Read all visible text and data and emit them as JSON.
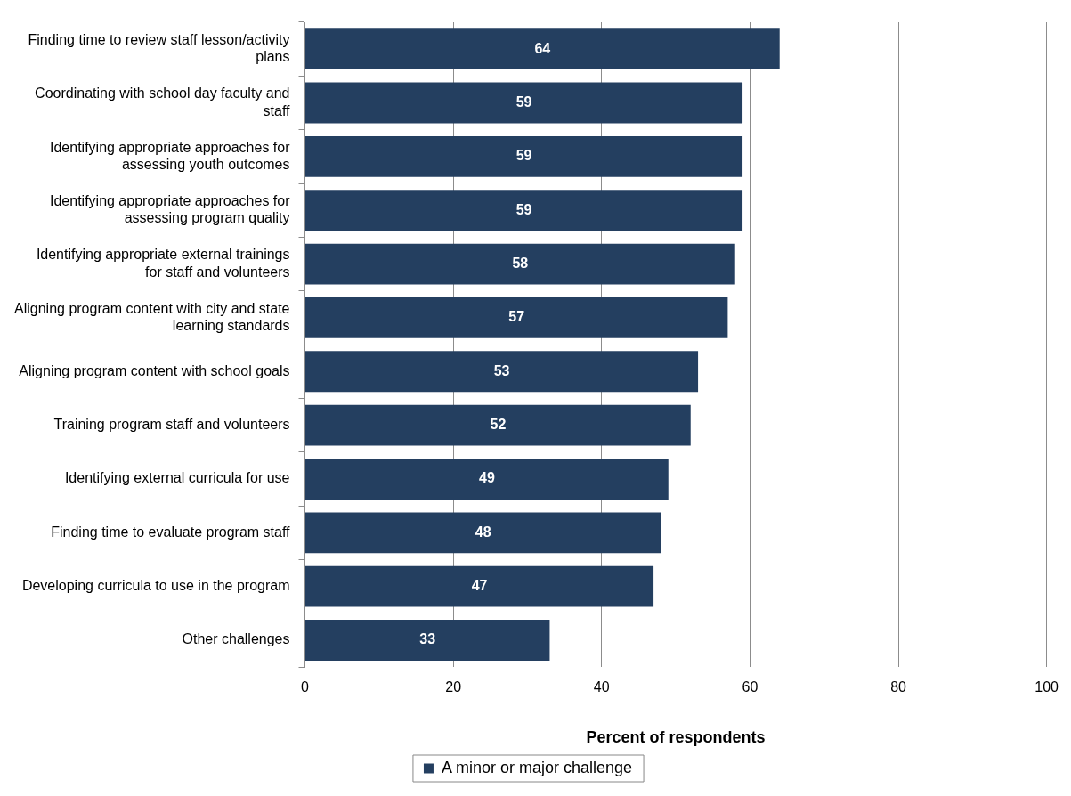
{
  "chart_data": {
    "type": "bar",
    "orientation": "horizontal",
    "xlabel": "Percent of respondents",
    "categories": [
      "Finding time to review staff lesson/activity plans",
      "Coordinating with school day faculty and staff",
      "Identifying appropriate approaches for assessing youth outcomes",
      "Identifying appropriate approaches for assessing program quality",
      "Identifying appropriate external trainings for staff and volunteers",
      "Aligning program content with city and state learning standards",
      "Aligning program content with school goals",
      "Training program staff and volunteers",
      "Identifying external curricula for use",
      "Finding time to evaluate program staff",
      "Developing curricula to use in the program",
      "Other challenges"
    ],
    "series": [
      {
        "name": "A minor or major challenge",
        "color": "#243f60",
        "values": [
          64,
          59,
          59,
          59,
          58,
          57,
          53,
          52,
          49,
          48,
          47,
          33
        ]
      }
    ],
    "xlim": [
      0,
      100
    ],
    "xticks": [
      0,
      20,
      40,
      60,
      80,
      100
    ],
    "grid": "x",
    "legend": "bottom",
    "data_labels": true
  }
}
